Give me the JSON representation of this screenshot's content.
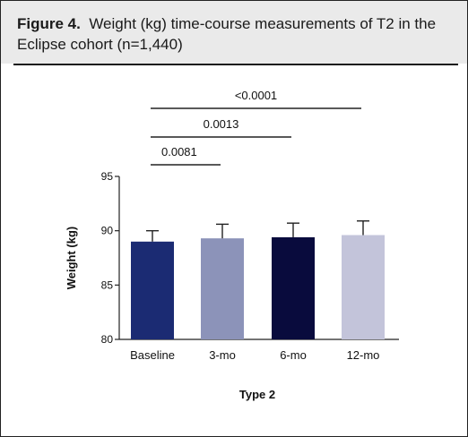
{
  "figure": {
    "label": "Figure 4.",
    "caption": "Weight (kg) time-course measurements of T2 in the Eclipse cohort (n=1,440)"
  },
  "chart_data": {
    "type": "bar",
    "categories": [
      "Baseline",
      "3-mo",
      "6-mo",
      "12-mo"
    ],
    "values": [
      89.0,
      89.3,
      89.4,
      89.6
    ],
    "error_upper": [
      90.0,
      90.6,
      90.7,
      90.9
    ],
    "colors": [
      "#1b2b73",
      "#8c93b9",
      "#090b3d",
      "#c3c4da"
    ],
    "xlabel": "Type 2",
    "ylabel": "Weight (kg)",
    "ylim": [
      80,
      95
    ],
    "yticks": [
      80,
      85,
      90,
      95
    ],
    "grid": false,
    "significance": [
      {
        "from": "Baseline",
        "to": "3-mo",
        "label": "0.0081"
      },
      {
        "from": "Baseline",
        "to": "6-mo",
        "label": "0.0013"
      },
      {
        "from": "Baseline",
        "to": "12-mo",
        "label": "<0.0001"
      }
    ]
  }
}
